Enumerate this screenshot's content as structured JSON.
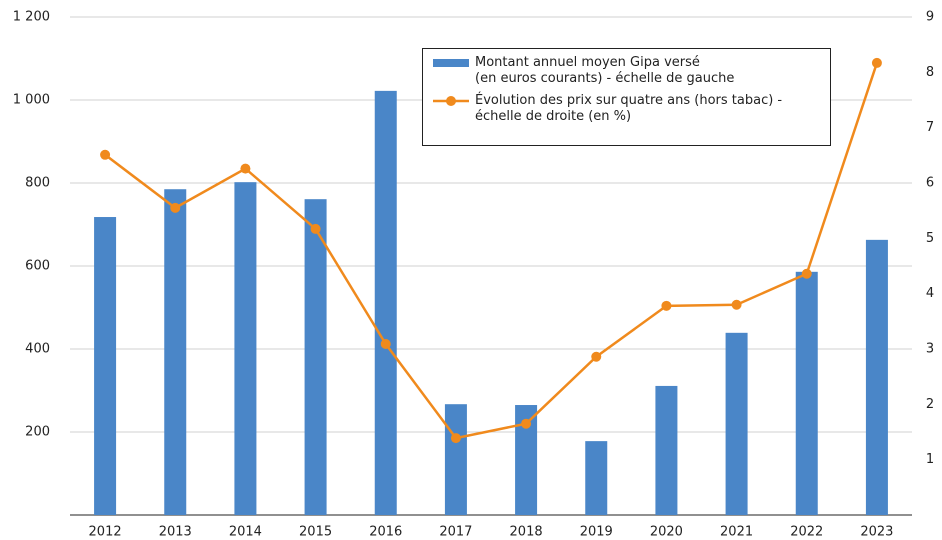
{
  "chart_data": {
    "type": "bar",
    "categories": [
      "2012",
      "2013",
      "2014",
      "2015",
      "2016",
      "2017",
      "2018",
      "2019",
      "2020",
      "2021",
      "2022",
      "2023"
    ],
    "series": [
      {
        "name": "Montant annuel moyen Gipa versé\n(en euros courants) - échelle de gauche",
        "type": "bar",
        "color": "#4a86c8",
        "values": [
          718,
          785,
          802,
          761,
          1022,
          267,
          265,
          178,
          311,
          439,
          586,
          663
        ]
      },
      {
        "name": "Évolution des prix sur quatre ans (hors tabac) -\néchelle de droite (en %)",
        "type": "line",
        "axis": "y2",
        "color": "#f08a1d",
        "values": [
          6.51,
          5.55,
          6.26,
          5.17,
          3.09,
          1.39,
          1.65,
          2.86,
          3.78,
          3.8,
          4.36,
          8.17
        ]
      }
    ],
    "ylim": [
      0,
      1200
    ],
    "yticks": [
      200,
      400,
      600,
      800,
      {
        "value": 1000,
        "label": "1 000"
      },
      {
        "value": 1200,
        "label": "1 200"
      }
    ],
    "y2lim": [
      0,
      9
    ],
    "y2ticks": [
      1,
      2,
      3,
      4,
      5,
      6,
      7,
      8,
      9
    ],
    "grid": true
  }
}
